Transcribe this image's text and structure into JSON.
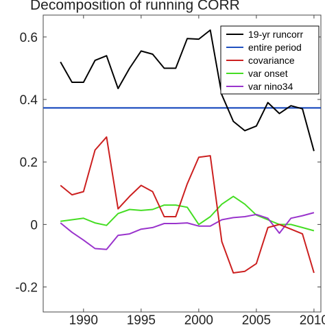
{
  "chart_data": {
    "type": "line",
    "title": "Decomposition of running CORR",
    "xlabel": "",
    "ylabel": "",
    "xlim": [
      1986.5,
      2010.6
    ],
    "ylim": [
      -0.28,
      0.67
    ],
    "xticks": [
      1990,
      1995,
      2000,
      2005,
      2010
    ],
    "yticks": [
      -0.2,
      0,
      0.2,
      0.4,
      0.6
    ],
    "ytick_labels": [
      "-0.2",
      "0",
      "0.2",
      "0.4",
      "0.6"
    ],
    "grid": false,
    "legend_position": "top-right",
    "x": [
      1988,
      1989,
      1990,
      1991,
      1992,
      1993,
      1994,
      1995,
      1996,
      1997,
      1998,
      1999,
      2000,
      2001,
      2002,
      2003,
      2004,
      2005,
      2006,
      2007,
      2008,
      2009,
      2010
    ],
    "series": [
      {
        "name": "19-yr runcorr",
        "color": "#000000",
        "values": [
          0.52,
          0.455,
          0.455,
          0.525,
          0.54,
          0.435,
          0.5,
          0.555,
          0.545,
          0.5,
          0.5,
          0.595,
          0.593,
          0.622,
          0.415,
          0.33,
          0.3,
          0.315,
          0.39,
          0.355,
          0.38,
          0.37,
          0.235
        ]
      },
      {
        "name": "entire period",
        "color": "#1f4fbf",
        "constant": 0.373
      },
      {
        "name": "covariance",
        "color": "#cc1f1f",
        "values": [
          0.125,
          0.095,
          0.105,
          0.238,
          0.28,
          0.05,
          0.09,
          0.125,
          0.105,
          0.025,
          0.025,
          0.13,
          0.215,
          0.22,
          -0.055,
          -0.155,
          -0.15,
          -0.125,
          -0.01,
          0.0,
          -0.015,
          -0.03,
          -0.155
        ]
      },
      {
        "name": "var onset",
        "color": "#44dd22",
        "values": [
          0.01,
          0.015,
          0.02,
          0.005,
          -0.003,
          0.035,
          0.048,
          0.045,
          0.048,
          0.062,
          0.062,
          0.055,
          0.0,
          0.025,
          0.065,
          0.09,
          0.065,
          0.03,
          0.015,
          0.0,
          0.0,
          -0.01,
          -0.02
        ]
      },
      {
        "name": "var nino34",
        "color": "#9933cc",
        "values": [
          0.005,
          -0.025,
          -0.05,
          -0.077,
          -0.08,
          -0.035,
          -0.03,
          -0.015,
          -0.01,
          0.003,
          0.003,
          0.005,
          -0.005,
          -0.005,
          0.015,
          0.022,
          0.025,
          0.032,
          0.02,
          -0.028,
          0.02,
          0.028,
          0.038
        ]
      }
    ]
  }
}
